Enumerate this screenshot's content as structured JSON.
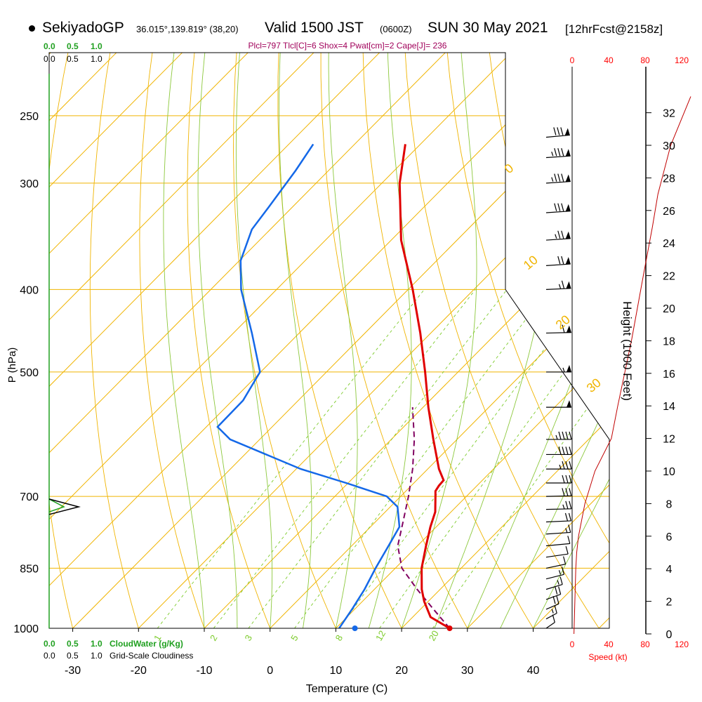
{
  "header": {
    "site": "SekiyadoGP",
    "coords": "36.015°,139.819° (38,20)",
    "valid": "Valid 1500 JST",
    "valid_z": "(0600Z)",
    "valid_date": "SUN 30 May 2021",
    "forecast": "[12hrFcst@2158z]",
    "indices": "Plcl=797 Tlcl[C]=6 Shox=4 Pwat[cm]=2 Cape[J]= 236"
  },
  "colors": {
    "isobar": "#f0b400",
    "isotherm": "#f0b400",
    "dry_adiabat": "#f0b400",
    "moist_adiabat": "#8cc83c",
    "mixing_ratio": "#7ccb2a",
    "temperature": "#e00000",
    "dewpoint": "#1468e8",
    "parcel": "#800060",
    "cloud_water": "#20a020",
    "speed": "#ff0000",
    "height_curve": "#c00000",
    "wind": "#000000"
  },
  "chart_data": {
    "type": "skew-t",
    "xlabel": "Temperature (C)",
    "ylabel": "P (hPa)",
    "right_label": "Height (1000 Feet)",
    "xticks": [
      -30,
      -20,
      -10,
      0,
      10,
      20,
      30,
      40
    ],
    "pressure_levels": [
      250,
      300,
      400,
      500,
      700,
      850,
      1000
    ],
    "pressure_ticks": [
      "250",
      "300",
      "400",
      "500",
      "700",
      "850",
      "1000"
    ],
    "height_ticks": [
      "0",
      "2",
      "4",
      "6",
      "8",
      "10",
      "12",
      "14",
      "16",
      "18",
      "20",
      "22",
      "24",
      "26",
      "28",
      "30",
      "32"
    ],
    "speed_ticks": [
      "0",
      "40",
      "80",
      "120"
    ],
    "speed_label": "Speed (kt)",
    "cloud_ticks": [
      "0.0",
      "0.5",
      "1.0"
    ],
    "cloud_water_label": "CloudWater (g/Kg)",
    "cloudiness_label": "Grid-Scale Cloudiness",
    "isotherm_labels": [
      "10",
      "0",
      "-10",
      "-20",
      "-30"
    ],
    "dry_adiabat_labels": [
      "0",
      "10",
      "20",
      "30"
    ],
    "mixing_ratio_labels": [
      "1",
      "2",
      "3",
      "5",
      "8",
      "12",
      "20"
    ],
    "temperature": [
      {
        "p": 1000,
        "t": 27.3
      },
      {
        "p": 970,
        "t": 22.7
      },
      {
        "p": 930,
        "t": 19.4
      },
      {
        "p": 900,
        "t": 17.2
      },
      {
        "p": 850,
        "t": 14.0
      },
      {
        "p": 800,
        "t": 11.3
      },
      {
        "p": 760,
        "t": 9.1
      },
      {
        "p": 730,
        "t": 7.6
      },
      {
        "p": 700,
        "t": 5.3
      },
      {
        "p": 690,
        "t": 4.5
      },
      {
        "p": 680,
        "t": 4.2
      },
      {
        "p": 670,
        "t": 4.1
      },
      {
        "p": 650,
        "t": 1.7
      },
      {
        "p": 600,
        "t": -3.6
      },
      {
        "p": 550,
        "t": -9.2
      },
      {
        "p": 500,
        "t": -15.0
      },
      {
        "p": 450,
        "t": -21.6
      },
      {
        "p": 400,
        "t": -29.3
      },
      {
        "p": 350,
        "t": -38.5
      },
      {
        "p": 300,
        "t": -47.3
      },
      {
        "p": 270,
        "t": -52.3
      }
    ],
    "dewpoint": [
      {
        "p": 1000,
        "t": 10.5
      },
      {
        "p": 950,
        "t": 9.6
      },
      {
        "p": 900,
        "t": 8.5
      },
      {
        "p": 850,
        "t": 7.0
      },
      {
        "p": 800,
        "t": 5.6
      },
      {
        "p": 760,
        "t": 4.4
      },
      {
        "p": 720,
        "t": 1.1
      },
      {
        "p": 700,
        "t": -2.1
      },
      {
        "p": 675,
        "t": -10.3
      },
      {
        "p": 650,
        "t": -19.3
      },
      {
        "p": 600,
        "t": -34.5
      },
      {
        "p": 580,
        "t": -38.3
      },
      {
        "p": 540,
        "t": -38.4
      },
      {
        "p": 500,
        "t": -40.1
      },
      {
        "p": 450,
        "t": -47.2
      },
      {
        "p": 400,
        "t": -55.4
      },
      {
        "p": 370,
        "t": -59.8
      },
      {
        "p": 340,
        "t": -62.8
      },
      {
        "p": 320,
        "t": -63.6
      },
      {
        "p": 290,
        "t": -65.0
      },
      {
        "p": 270,
        "t": -66.3
      }
    ],
    "parcel": [
      {
        "p": 1000,
        "t": 27.3
      },
      {
        "p": 950,
        "t": 22.0
      },
      {
        "p": 900,
        "t": 16.5
      },
      {
        "p": 850,
        "t": 11.0
      },
      {
        "p": 800,
        "t": 7.0
      },
      {
        "p": 750,
        "t": 4.2
      },
      {
        "p": 700,
        "t": 1.2
      },
      {
        "p": 650,
        "t": -2.3
      },
      {
        "p": 600,
        "t": -6.5
      },
      {
        "p": 550,
        "t": -11.6
      }
    ],
    "surface": {
      "t": 27.3,
      "td": 12.9
    },
    "cloud_water": [
      {
        "p": 705,
        "v": 0.0
      },
      {
        "p": 720,
        "v": 0.35
      },
      {
        "p": 730,
        "v": 0.0
      }
    ],
    "cloudiness": [
      {
        "p": 705,
        "v": 0.0
      },
      {
        "p": 720,
        "v": 0.7
      },
      {
        "p": 735,
        "v": 0.0
      }
    ],
    "wind_speed": [
      {
        "h": 0,
        "v": 2
      },
      {
        "h": 2,
        "v": 3
      },
      {
        "h": 4,
        "v": 4
      },
      {
        "h": 5,
        "v": 5
      },
      {
        "h": 6,
        "v": 7
      },
      {
        "h": 8,
        "v": 14
      },
      {
        "h": 10,
        "v": 25
      },
      {
        "h": 12,
        "v": 43
      },
      {
        "h": 14,
        "v": 50
      },
      {
        "h": 18,
        "v": 65
      },
      {
        "h": 22,
        "v": 78
      },
      {
        "h": 25,
        "v": 88
      },
      {
        "h": 27,
        "v": 94
      },
      {
        "h": 30,
        "v": 108
      },
      {
        "h": 33,
        "v": 130
      }
    ],
    "wind_barbs": [
      {
        "p": 1000,
        "dir": 200,
        "spd": 10
      },
      {
        "p": 975,
        "dir": 205,
        "spd": 15
      },
      {
        "p": 950,
        "dir": 210,
        "spd": 20
      },
      {
        "p": 925,
        "dir": 215,
        "spd": 20
      },
      {
        "p": 900,
        "dir": 220,
        "spd": 15
      },
      {
        "p": 875,
        "dir": 225,
        "spd": 15
      },
      {
        "p": 850,
        "dir": 230,
        "spd": 10
      },
      {
        "p": 825,
        "dir": 240,
        "spd": 10
      },
      {
        "p": 800,
        "dir": 250,
        "spd": 10
      },
      {
        "p": 775,
        "dir": 255,
        "spd": 15
      },
      {
        "p": 750,
        "dir": 260,
        "spd": 20
      },
      {
        "p": 725,
        "dir": 265,
        "spd": 25
      },
      {
        "p": 700,
        "dir": 265,
        "spd": 30
      },
      {
        "p": 675,
        "dir": 270,
        "spd": 30
      },
      {
        "p": 650,
        "dir": 270,
        "spd": 35
      },
      {
        "p": 625,
        "dir": 270,
        "spd": 40
      },
      {
        "p": 600,
        "dir": 270,
        "spd": 45
      },
      {
        "p": 550,
        "dir": 270,
        "spd": 50
      },
      {
        "p": 500,
        "dir": 270,
        "spd": 55
      },
      {
        "p": 450,
        "dir": 265,
        "spd": 60
      },
      {
        "p": 400,
        "dir": 260,
        "spd": 65
      },
      {
        "p": 375,
        "dir": 255,
        "spd": 70
      },
      {
        "p": 350,
        "dir": 255,
        "spd": 75
      },
      {
        "p": 325,
        "dir": 255,
        "spd": 80
      },
      {
        "p": 300,
        "dir": 255,
        "spd": 85
      },
      {
        "p": 280,
        "dir": 255,
        "spd": 85
      },
      {
        "p": 265,
        "dir": 250,
        "spd": 80
      }
    ]
  }
}
